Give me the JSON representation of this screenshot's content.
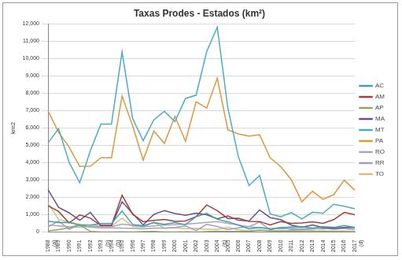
{
  "chart_data": {
    "type": "line",
    "title": "Taxas Prodes - Estados (km²)",
    "y_label": "km2",
    "categories": [
      "1988 (a)",
      "1989",
      "1990",
      "1991",
      "1992",
      "1993 (b)",
      "1994 (b)",
      "1995",
      "1996",
      "1997",
      "1998",
      "1999",
      "2000",
      "2001",
      "2002",
      "2003",
      "2004 (e)",
      "2005",
      "2006",
      "2007",
      "2008",
      "2009",
      "2010",
      "2011",
      "2012",
      "2013",
      "2014",
      "2015",
      "2016",
      "2017 (d)"
    ],
    "series": [
      {
        "name": "AC",
        "color": "#3f9fb0",
        "values": [
          620,
          540,
          550,
          380,
          400,
          482,
          482,
          1208,
          433,
          358,
          536,
          441,
          547,
          419,
          883,
          1078,
          728,
          592,
          398,
          184,
          254,
          167,
          259,
          280,
          305,
          221,
          309,
          264,
          372,
          257
        ]
      },
      {
        "name": "AM",
        "color": "#a0403c",
        "values": [
          1510,
          1180,
          520,
          980,
          799,
          370,
          370,
          2114,
          1023,
          589,
          670,
          720,
          612,
          634,
          885,
          1558,
          1232,
          775,
          788,
          610,
          604,
          405,
          595,
          502,
          523,
          583,
          500,
          712,
          1129,
          1001
        ]
      },
      {
        "name": "AP",
        "color": "#8fa85a",
        "values": [
          60,
          130,
          250,
          410,
          36,
          0,
          0,
          9,
          0,
          18,
          30,
          0,
          0,
          7,
          0,
          25,
          46,
          33,
          30,
          39,
          100,
          70,
          53,
          66,
          27,
          23,
          31,
          25,
          17,
          24
        ]
      },
      {
        "name": "MA",
        "color": "#6b4f8c",
        "values": [
          2450,
          1420,
          1100,
          670,
          1135,
          372,
          372,
          1745,
          1061,
          409,
          1012,
          1230,
          1065,
          958,
          1085,
          993,
          755,
          922,
          674,
          631,
          1271,
          828,
          712,
          396,
          269,
          403,
          257,
          209,
          258,
          265
        ]
      },
      {
        "name": "MT",
        "color": "#4bacc6",
        "values": [
          5140,
          5960,
          4020,
          2840,
          4674,
          6220,
          6220,
          10391,
          6543,
          5271,
          6466,
          6963,
          6369,
          7703,
          7892,
          10405,
          11814,
          7145,
          4333,
          2678,
          3258,
          1049,
          871,
          1120,
          757,
          1139,
          1075,
          1601,
          1489,
          1341
        ]
      },
      {
        "name": "PA",
        "color": "#e0963a",
        "values": [
          6990,
          5750,
          4890,
          3780,
          3787,
          4284,
          4284,
          7845,
          6135,
          4139,
          5829,
          5111,
          6671,
          5237,
          7510,
          7145,
          8870,
          5899,
          5659,
          5526,
          5607,
          4281,
          3770,
          3008,
          1741,
          2346,
          1887,
          2153,
          2992,
          2413
        ]
      },
      {
        "name": "RO",
        "color": "#a6aab0",
        "values": [
          400,
          350,
          300,
          280,
          320,
          300,
          300,
          450,
          380,
          300,
          350,
          400,
          420,
          450,
          500,
          550,
          600,
          500,
          400,
          300,
          250,
          200,
          180,
          200,
          180,
          200,
          170,
          220,
          260,
          240
        ]
      },
      {
        "name": "RR",
        "color": "#a79bc8",
        "values": [
          290,
          630,
          150,
          420,
          281,
          240,
          240,
          220,
          214,
          184,
          223,
          220,
          253,
          345,
          84,
          439,
          311,
          133,
          231,
          309,
          574,
          121,
          256,
          141,
          124,
          170,
          219,
          156,
          202,
          132
        ]
      },
      {
        "name": "TO",
        "color": "#d4c07c",
        "values": [
          1650,
          730,
          580,
          440,
          409,
          333,
          333,
          797,
          320,
          273,
          576,
          216,
          244,
          189,
          212,
          156,
          158,
          271,
          124,
          63,
          107,
          61,
          49,
          40,
          52,
          74,
          50,
          57,
          58,
          31
        ]
      }
    ],
    "ylim": [
      0,
      12000
    ],
    "yticks": [
      0,
      1000,
      2000,
      3000,
      4000,
      5000,
      6000,
      7000,
      8000,
      9000,
      10000,
      11000,
      12000
    ],
    "grid": true,
    "legend": "right"
  }
}
